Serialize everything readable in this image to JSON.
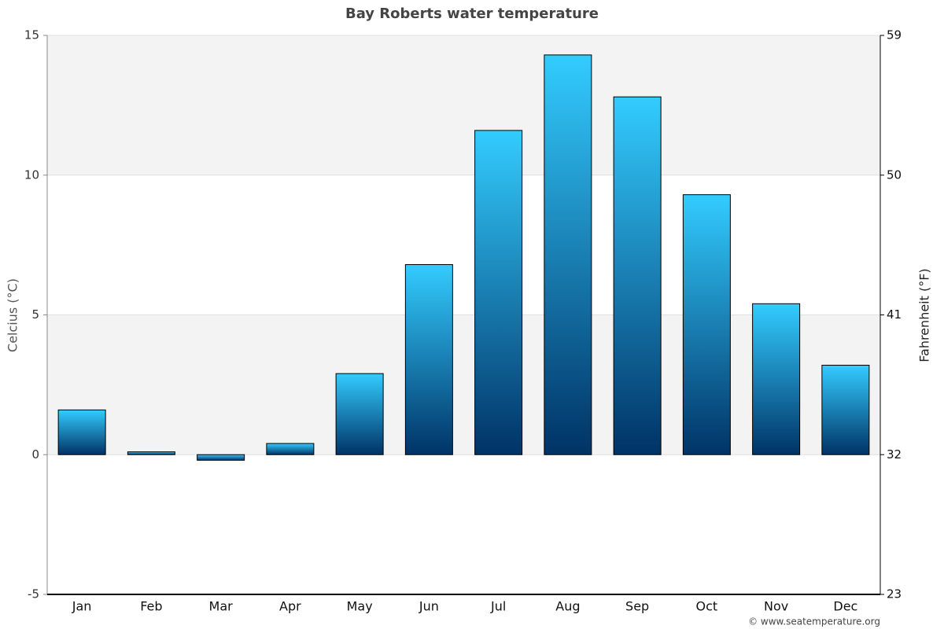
{
  "chart_data": {
    "type": "bar",
    "title": "Bay Roberts water temperature",
    "categories": [
      "Jan",
      "Feb",
      "Mar",
      "Apr",
      "May",
      "Jun",
      "Jul",
      "Aug",
      "Sep",
      "Oct",
      "Nov",
      "Dec"
    ],
    "values": [
      1.6,
      0.1,
      -0.2,
      0.4,
      2.9,
      6.8,
      11.6,
      14.3,
      12.8,
      9.3,
      5.4,
      3.2
    ],
    "color_top": "#33ccff",
    "color_bottom": "#003366",
    "ylim": [
      -5,
      15
    ],
    "yticks": [
      -5,
      0,
      5,
      10,
      15
    ],
    "y2lim": [
      23,
      59
    ],
    "y2ticks": [
      23,
      32,
      41,
      50,
      59
    ],
    "ylabel": "Celcius (°C)",
    "y2label": "Fahrenheit (°F)",
    "alternate_bands": true,
    "grid": true,
    "credit": "© www.seatemperature.org"
  }
}
